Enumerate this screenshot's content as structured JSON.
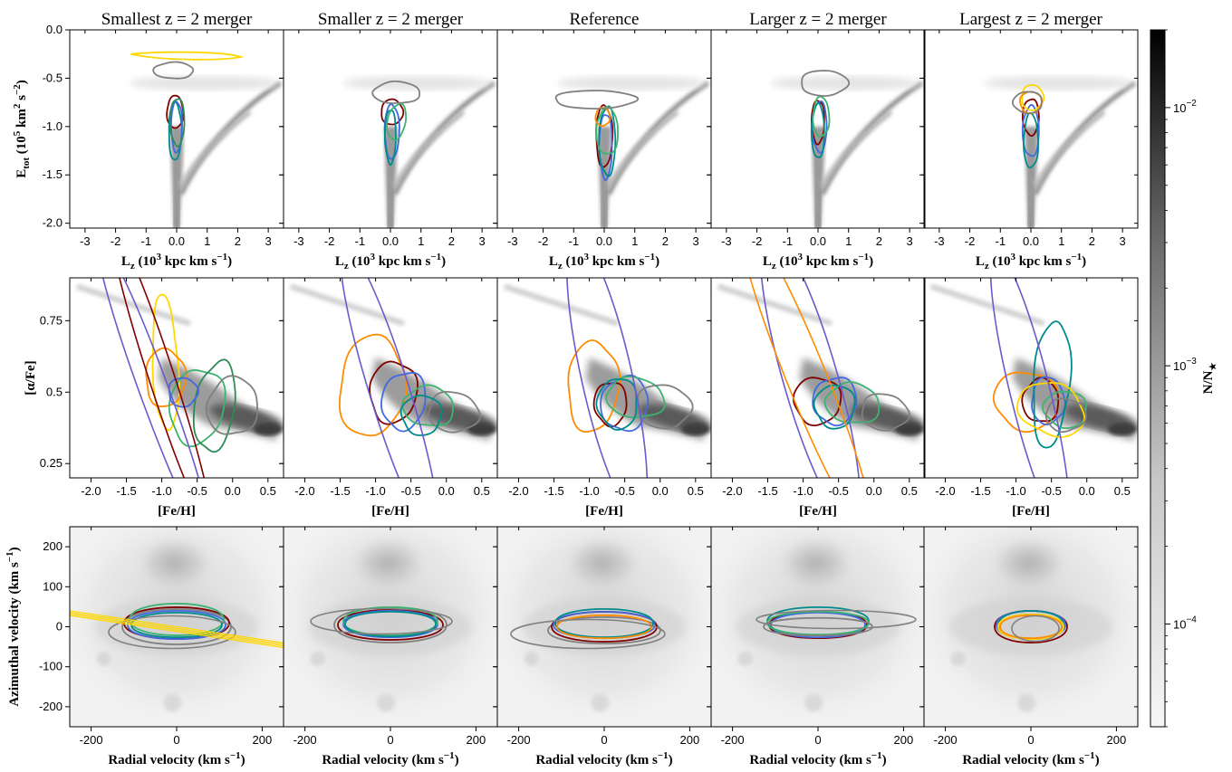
{
  "chart_data": {
    "type": "contour",
    "panel_titles": [
      "Smallest z = 2 merger",
      "Smaller z = 2 merger",
      "Reference",
      "Larger z = 2 merger",
      "Largest z = 2 merger"
    ],
    "rows": [
      {
        "id": "energy",
        "xlabel": "L_z (10^3 kpc km s^-1)",
        "ylabel": "E_tot (10^5 km^2 s^-2)",
        "xlim": [
          -3.5,
          3.5
        ],
        "ylim": [
          -2.05,
          0.0
        ],
        "xticks": [
          -3,
          -2,
          -1,
          0,
          1,
          2,
          3
        ],
        "xtick_labels": [
          "-3",
          "-2",
          "-1",
          "0.0",
          "1",
          "2",
          "3"
        ],
        "yticks": [
          0.0,
          -0.5,
          -1.0,
          -1.5,
          -2.0
        ],
        "ytick_labels": [
          "0.0",
          "-0.5",
          "-1.0",
          "-1.5",
          "-2.0"
        ]
      },
      {
        "id": "chem",
        "xlabel": "[Fe/H]",
        "ylabel": "[α/Fe]",
        "xlim": [
          -2.3,
          0.72
        ],
        "ylim": [
          0.2,
          0.9
        ],
        "xticks": [
          -2.0,
          -1.5,
          -1.0,
          -0.5,
          0.0,
          0.5
        ],
        "xtick_labels": [
          "-2.0",
          "-1.5",
          "-1.0",
          "-0.5",
          "0.0",
          "0.5"
        ],
        "yticks": [
          0.75,
          0.5,
          0.25
        ],
        "ytick_labels": [
          "0.75",
          "0.5",
          "0.25"
        ]
      },
      {
        "id": "vel",
        "xlabel": "Radial velocity (km s^-1)",
        "ylabel": "Azimuthal velocity (km s^-1)",
        "xlim": [
          -250,
          250
        ],
        "ylim": [
          -250,
          250
        ],
        "xticks": [
          -200,
          0,
          200
        ],
        "xtick_labels": [
          "-200",
          "0",
          "200"
        ],
        "yticks": [
          200,
          100,
          0,
          -100,
          -200
        ],
        "ytick_labels": [
          "200",
          "100",
          "0",
          "-100",
          "-200"
        ]
      }
    ],
    "colorbar": {
      "label": "N/N★",
      "scale": "log",
      "range": [
        4e-05,
        0.02
      ],
      "ticks": [
        0.01,
        0.001,
        0.0001
      ],
      "tick_labels": [
        "10^-2",
        "10^-3",
        "10^-4"
      ]
    },
    "contour_colors": [
      "#808080",
      "#800000",
      "#4169e1",
      "#2e8b57",
      "#3cb371",
      "#008b8b",
      "#ff8c00",
      "#ffd700",
      "#6a5acd"
    ],
    "background_colormap": "Greys"
  }
}
